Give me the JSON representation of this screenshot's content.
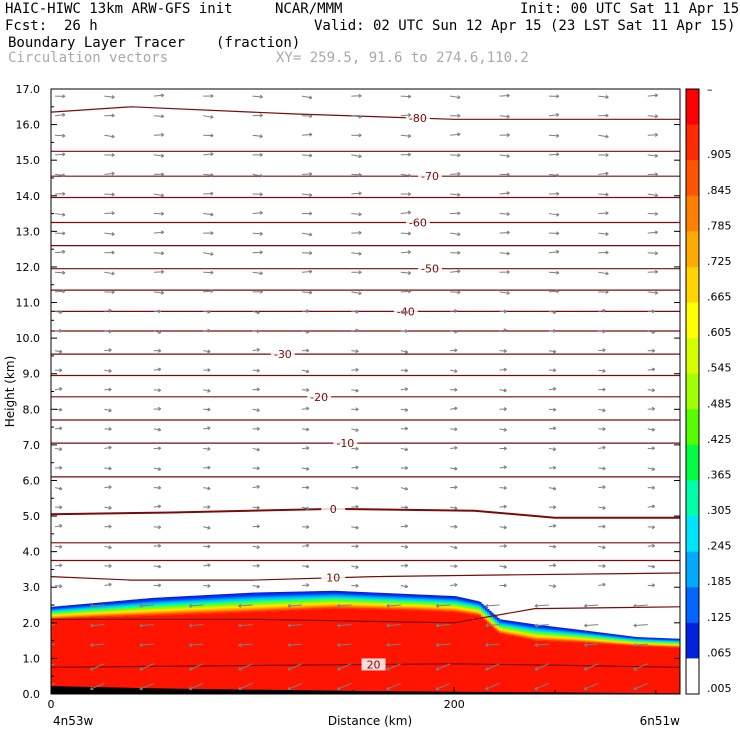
{
  "header": {
    "model": "HAIC-HIWC 13km ARW-GFS init",
    "org": "NCAR/MMM",
    "init": "Init: 00 UTC Sat 11 Apr 15",
    "fcst_label": "Fcst:",
    "fcst_value": "26 h",
    "valid": "Valid: 02 UTC Sun 12 Apr 15 (23 LST Sat 11 Apr 15)",
    "field": "Boundary Layer Tracer",
    "field_units": "(fraction)",
    "vectors": "Circulation vectors",
    "xy": "XY= 259.5, 91.6 to 274.6,110.2"
  },
  "colors": {
    "contour": "#7a0b0b",
    "vector": "#7f7f7f",
    "header_gray": "#a9a9a9"
  },
  "chart_data": {
    "type": "heatmap",
    "xlabel": "Distance (km)",
    "ylabel": "Height (km)",
    "xlim": [
      0,
      312
    ],
    "ylim": [
      0.0,
      17.0
    ],
    "x_ticks": [
      {
        "v": 0,
        "label": "0"
      },
      {
        "v": 200,
        "label": "200"
      }
    ],
    "x_end_labels": {
      "left": "4n53w",
      "right": "6n51w"
    },
    "y_ticks": [
      "0.0",
      "1.0",
      "2.0",
      "3.0",
      "4.0",
      "5.0",
      "6.0",
      "7.0",
      "8.0",
      "9.0",
      "10.0",
      "11.0",
      "12.0",
      "13.0",
      "14.0",
      "15.0",
      "16.0",
      "17.0"
    ],
    "colorbar_levels": [
      "–",
      ".905",
      ".845",
      ".785",
      ".725",
      ".665",
      ".605",
      ".545",
      ".485",
      ".425",
      ".365",
      ".305",
      ".245",
      ".185",
      ".125",
      ".065",
      ".005"
    ],
    "colorbar_colors": [
      "#ff0000",
      "#ff2a00",
      "#ff5500",
      "#ff7f00",
      "#ffaa00",
      "#ffd400",
      "#ffff00",
      "#d4ff00",
      "#a0ff00",
      "#55ff00",
      "#00ff40",
      "#00ffaa",
      "#00e5ff",
      "#00aaff",
      "#0066ff",
      "#0022dd",
      "#ffffff"
    ],
    "tracer_top_x": [
      0,
      20,
      50,
      100,
      140,
      180,
      200,
      212,
      222,
      240,
      262,
      290,
      312
    ],
    "tracer_top_km": [
      2.45,
      2.55,
      2.7,
      2.85,
      2.9,
      2.8,
      2.75,
      2.6,
      2.1,
      1.95,
      1.8,
      1.6,
      1.55
    ],
    "tracer_core_km": [
      2.1,
      2.15,
      2.2,
      2.3,
      2.4,
      2.35,
      2.3,
      2.2,
      1.7,
      1.5,
      1.45,
      1.35,
      1.3
    ],
    "isotherms": [
      {
        "label": "-80",
        "x": [
          0,
          40,
          120,
          200,
          312
        ],
        "y": [
          16.35,
          16.5,
          16.3,
          16.15,
          16.15
        ],
        "label_x": 182
      },
      {
        "label": "",
        "x": [
          0,
          312
        ],
        "y": [
          15.25,
          15.25
        ]
      },
      {
        "label": "-70",
        "x": [
          0,
          312
        ],
        "y": [
          14.55,
          14.55
        ],
        "label_x": 188
      },
      {
        "label": "",
        "x": [
          0,
          312
        ],
        "y": [
          13.95,
          13.95
        ]
      },
      {
        "label": "-60",
        "x": [
          0,
          312
        ],
        "y": [
          13.25,
          13.25
        ],
        "label_x": 182
      },
      {
        "label": "",
        "x": [
          0,
          312
        ],
        "y": [
          12.6,
          12.6
        ]
      },
      {
        "label": "-50",
        "x": [
          0,
          312
        ],
        "y": [
          11.95,
          11.95
        ],
        "label_x": 188
      },
      {
        "label": "",
        "x": [
          0,
          312
        ],
        "y": [
          11.35,
          11.35
        ]
      },
      {
        "label": "-40",
        "x": [
          0,
          312
        ],
        "y": [
          10.75,
          10.75
        ],
        "label_x": 176
      },
      {
        "label": "",
        "x": [
          0,
          312
        ],
        "y": [
          10.2,
          10.2
        ]
      },
      {
        "label": "-30",
        "x": [
          0,
          312
        ],
        "y": [
          9.55,
          9.55
        ],
        "label_x": 115
      },
      {
        "label": "",
        "x": [
          0,
          312
        ],
        "y": [
          8.95,
          8.95
        ]
      },
      {
        "label": "-20",
        "x": [
          0,
          312
        ],
        "y": [
          8.35,
          8.35
        ],
        "label_x": 133
      },
      {
        "label": "",
        "x": [
          0,
          312
        ],
        "y": [
          7.7,
          7.7
        ]
      },
      {
        "label": "-10",
        "x": [
          0,
          312
        ],
        "y": [
          7.05,
          7.05
        ],
        "label_x": 146
      },
      {
        "label": "",
        "x": [
          0,
          312
        ],
        "y": [
          6.1,
          6.1
        ]
      },
      {
        "label": "0",
        "x": [
          0,
          60,
          140,
          210,
          250,
          312
        ],
        "y": [
          5.05,
          5.1,
          5.2,
          5.15,
          4.95,
          4.95
        ],
        "label_x": 140,
        "bold": true
      },
      {
        "label": "",
        "x": [
          0,
          312
        ],
        "y": [
          4.25,
          4.25
        ]
      },
      {
        "label": "",
        "x": [
          0,
          312
        ],
        "y": [
          3.75,
          3.75
        ]
      },
      {
        "label": "10",
        "x": [
          0,
          40,
          100,
          160,
          230,
          312
        ],
        "y": [
          3.3,
          3.2,
          3.2,
          3.3,
          3.35,
          3.4
        ],
        "label_x": 140
      },
      {
        "label": "",
        "x": [
          0,
          100,
          200,
          240,
          312
        ],
        "y": [
          2.1,
          2.1,
          2.0,
          2.4,
          2.45
        ]
      },
      {
        "label": "20",
        "x": [
          0,
          100,
          200,
          260,
          312
        ],
        "y": [
          0.75,
          0.8,
          0.85,
          0.8,
          0.75
        ],
        "label_x": 160
      }
    ]
  }
}
